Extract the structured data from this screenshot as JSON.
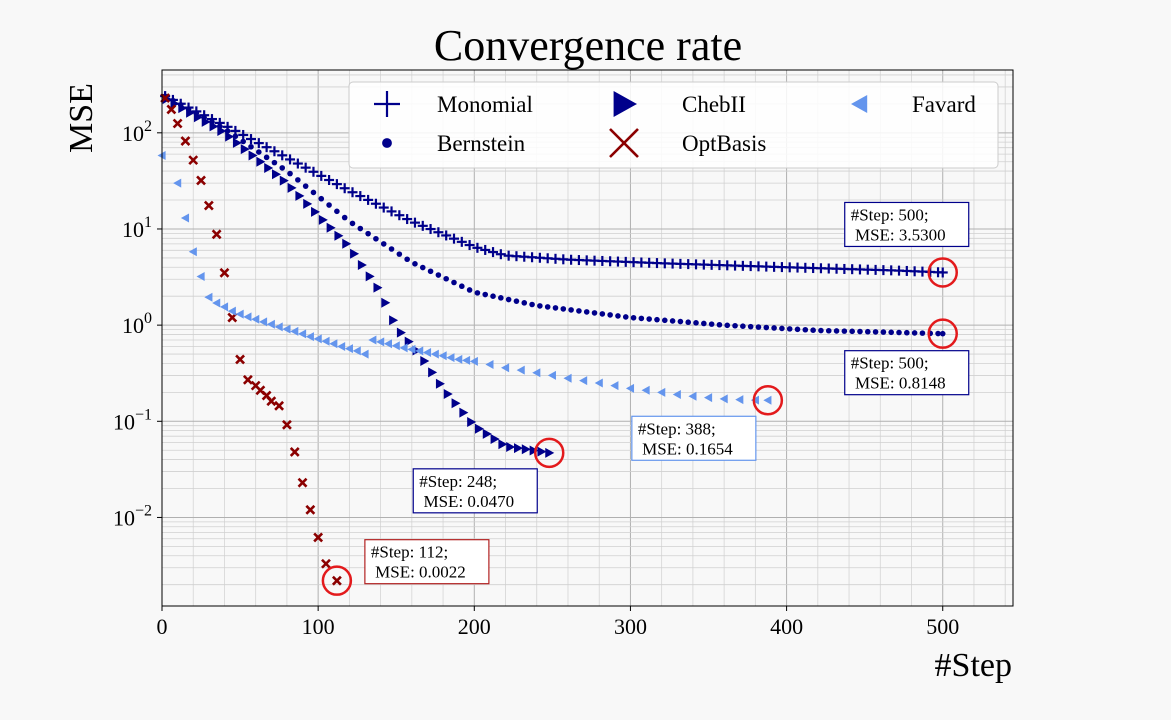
{
  "chart_data": {
    "type": "scatter",
    "title": "Convergence rate",
    "xlabel": "#Step",
    "ylabel": "MSE",
    "xlim": [
      0,
      545
    ],
    "ylim": [
      0.0012,
      450
    ],
    "yscale": "log",
    "grid": true,
    "legend": "top",
    "x_ticks": [
      0,
      100,
      200,
      300,
      400,
      500
    ],
    "y_ticks": [
      {
        "value": 0.01,
        "base": "10",
        "exp": "−2"
      },
      {
        "value": 0.1,
        "base": "10",
        "exp": "−1"
      },
      {
        "value": 1,
        "base": "10",
        "exp": "0"
      },
      {
        "value": 10,
        "base": "10",
        "exp": "1"
      },
      {
        "value": 100,
        "base": "10",
        "exp": "2"
      }
    ],
    "series": [
      {
        "name": "Monomial",
        "color": "#00008b",
        "marker": "plus",
        "knots": [
          [
            0,
            250
          ],
          [
            40,
            120
          ],
          [
            80,
            55
          ],
          [
            120,
            25
          ],
          [
            160,
            12
          ],
          [
            200,
            6.5
          ],
          [
            220,
            5.3
          ],
          [
            260,
            4.8
          ],
          [
            320,
            4.4
          ],
          [
            400,
            4
          ],
          [
            470,
            3.7
          ],
          [
            500,
            3.53
          ]
        ],
        "start": 2,
        "end": 500,
        "step": 5
      },
      {
        "name": "Bernstein",
        "color": "#00008b",
        "marker": "dot",
        "knots": [
          [
            0,
            250
          ],
          [
            40,
            110
          ],
          [
            80,
            40
          ],
          [
            120,
            12
          ],
          [
            160,
            4.5
          ],
          [
            200,
            2.2
          ],
          [
            240,
            1.6
          ],
          [
            300,
            1.2
          ],
          [
            360,
            1
          ],
          [
            420,
            0.88
          ],
          [
            470,
            0.84
          ],
          [
            500,
            0.8148
          ]
        ],
        "start": 2,
        "end": 500,
        "step": 5
      },
      {
        "name": "ChebII",
        "color": "#00008b",
        "marker": "triangle-right",
        "knots": [
          [
            0,
            240
          ],
          [
            40,
            100
          ],
          [
            80,
            30
          ],
          [
            120,
            6.5
          ],
          [
            140,
            2.2
          ],
          [
            150,
            0.95
          ],
          [
            165,
            0.5
          ],
          [
            180,
            0.22
          ],
          [
            200,
            0.09
          ],
          [
            220,
            0.055
          ],
          [
            248,
            0.047
          ]
        ],
        "start": 3,
        "end": 248,
        "step": 5
      },
      {
        "name": "OptBasis",
        "color": "#8b0000",
        "marker": "x",
        "points": [
          [
            2,
            230
          ],
          [
            6,
            175
          ],
          [
            10,
            125
          ],
          [
            15,
            82
          ],
          [
            20,
            52
          ],
          [
            25,
            32
          ],
          [
            30,
            17.5
          ],
          [
            35,
            8.8
          ],
          [
            40,
            3.5
          ],
          [
            45,
            1.2
          ],
          [
            50,
            0.44
          ],
          [
            55,
            0.27
          ],
          [
            60,
            0.235
          ],
          [
            63,
            0.21
          ],
          [
            67,
            0.185
          ],
          [
            70,
            0.162
          ],
          [
            75,
            0.145
          ],
          [
            80,
            0.092
          ],
          [
            85,
            0.048
          ],
          [
            90,
            0.023
          ],
          [
            95,
            0.012
          ],
          [
            100,
            0.0062
          ],
          [
            105,
            0.0033
          ],
          [
            112,
            0.0022
          ]
        ]
      },
      {
        "name": "Favard",
        "color": "#6495ed",
        "marker": "triangle-left",
        "points": [
          [
            0,
            58
          ],
          [
            10,
            30
          ],
          [
            15,
            13
          ],
          [
            20,
            5.8
          ],
          [
            25,
            3.2
          ],
          [
            30,
            1.95
          ],
          [
            35,
            1.7
          ],
          [
            40,
            1.55
          ],
          [
            45,
            1.4
          ],
          [
            50,
            1.3
          ],
          [
            55,
            1.22
          ],
          [
            60,
            1.15
          ],
          [
            65,
            1.08
          ],
          [
            70,
            1.02
          ],
          [
            75,
            0.96
          ],
          [
            80,
            0.91
          ],
          [
            85,
            0.86
          ],
          [
            90,
            0.81
          ],
          [
            95,
            0.76
          ],
          [
            100,
            0.72
          ],
          [
            105,
            0.68
          ],
          [
            110,
            0.64
          ],
          [
            115,
            0.6
          ],
          [
            120,
            0.57
          ],
          [
            125,
            0.54
          ],
          [
            130,
            0.5
          ],
          [
            135,
            0.7
          ],
          [
            140,
            0.67
          ],
          [
            145,
            0.64
          ],
          [
            150,
            0.61
          ],
          [
            155,
            0.58
          ],
          [
            160,
            0.56
          ],
          [
            165,
            0.54
          ],
          [
            170,
            0.52
          ],
          [
            175,
            0.5
          ],
          [
            180,
            0.48
          ],
          [
            185,
            0.46
          ],
          [
            190,
            0.44
          ],
          [
            195,
            0.43
          ],
          [
            200,
            0.42
          ],
          [
            210,
            0.39
          ],
          [
            220,
            0.36
          ],
          [
            230,
            0.34
          ],
          [
            240,
            0.32
          ],
          [
            250,
            0.3
          ],
          [
            260,
            0.28
          ],
          [
            270,
            0.265
          ],
          [
            280,
            0.25
          ],
          [
            290,
            0.235
          ],
          [
            300,
            0.22
          ],
          [
            310,
            0.21
          ],
          [
            320,
            0.2
          ],
          [
            330,
            0.19
          ],
          [
            340,
            0.182
          ],
          [
            350,
            0.176
          ],
          [
            360,
            0.171
          ],
          [
            370,
            0.168
          ],
          [
            380,
            0.166
          ],
          [
            388,
            0.1654
          ]
        ]
      }
    ],
    "annotations": [
      {
        "line1": "#Step: 500;",
        "line2": " MSE: 3.5300",
        "x": 500,
        "y": 3.53,
        "border": "#00008b",
        "pos": "above"
      },
      {
        "line1": "#Step: 500;",
        "line2": " MSE: 0.8148",
        "x": 500,
        "y": 0.8148,
        "border": "#00008b",
        "pos": "below"
      },
      {
        "line1": "#Step: 388;",
        "line2": " MSE: 0.1654",
        "x": 388,
        "y": 0.1654,
        "border": "#6495ed",
        "pos": "below-left"
      },
      {
        "line1": "#Step: 248;",
        "line2": " MSE: 0.0470",
        "x": 248,
        "y": 0.047,
        "border": "#00008b",
        "pos": "below-left"
      },
      {
        "line1": "#Step: 112;",
        "line2": " MSE: 0.0022",
        "x": 112,
        "y": 0.0022,
        "border": "#b22222",
        "pos": "above-right"
      }
    ],
    "legend_entries": [
      {
        "label": "Monomial",
        "marker": "plus",
        "color": "#00008b"
      },
      {
        "label": "ChebII",
        "marker": "triangle-right",
        "color": "#00008b"
      },
      {
        "label": "Favard",
        "marker": "triangle-left",
        "color": "#6495ed"
      },
      {
        "label": "Bernstein",
        "marker": "dot",
        "color": "#00008b"
      },
      {
        "label": "OptBasis",
        "marker": "x",
        "color": "#8b0000"
      }
    ]
  }
}
